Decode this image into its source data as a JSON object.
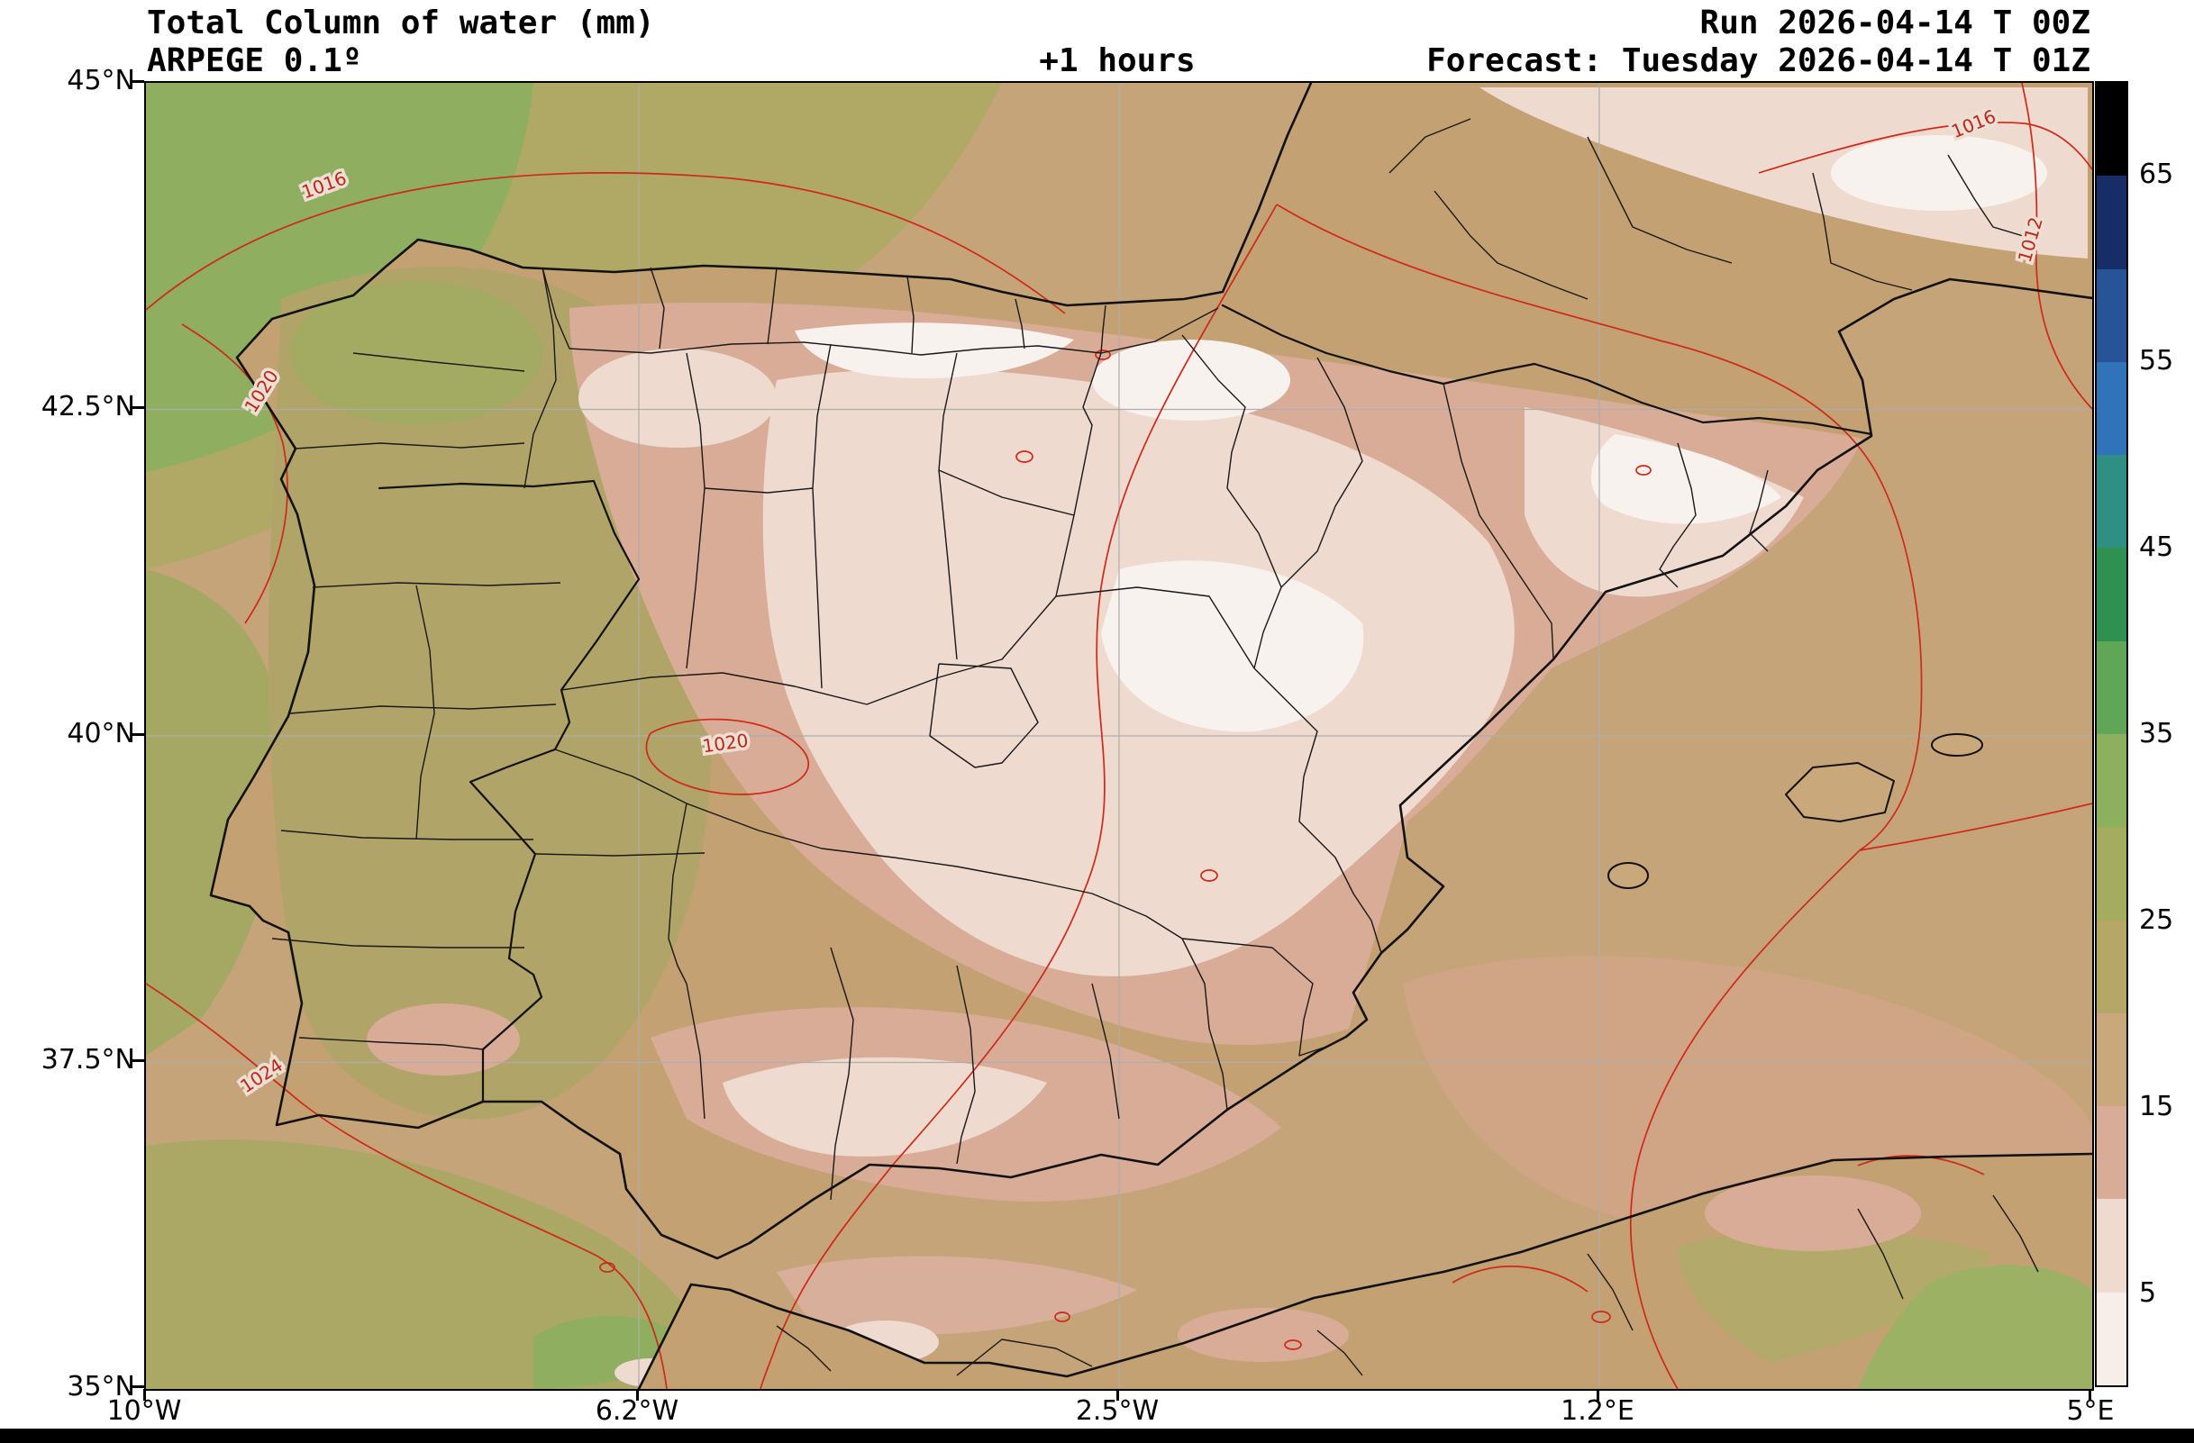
{
  "header": {
    "title": "Total Column of water (mm)",
    "model": "ARPEGE 0.1º",
    "lead_time": "+1 hours",
    "run": "Run 2026-04-14 T 00Z",
    "forecast": "Forecast: Tuesday 2026-04-14 T 01Z"
  },
  "axes": {
    "lat_ticks": [
      "45°N",
      "42.5°N",
      "40°N",
      "37.5°N",
      "35°N"
    ],
    "lon_ticks": [
      "10°W",
      "6.2°W",
      "2.5°W",
      "1.2°E",
      "5°E"
    ]
  },
  "colorbar": {
    "tick_labels": [
      "65",
      "55",
      "45",
      "35",
      "25",
      "15",
      "5"
    ],
    "levels_mm": [
      0,
      5,
      10,
      15,
      20,
      25,
      30,
      35,
      40,
      45,
      50,
      55,
      60,
      65,
      70
    ],
    "colors_top_to_bottom": [
      "#000000",
      "#162d68",
      "#275397",
      "#3173b8",
      "#2e8f82",
      "#2f9150",
      "#5fa757",
      "#8db05e",
      "#a4ad5f",
      "#b5a766",
      "#c9a87c",
      "#d9ac97",
      "#eedacf",
      "#f7eeea"
    ]
  },
  "isobars": {
    "line_color": "#d02818",
    "labels": [
      "1016",
      "1020",
      "1016",
      "1012",
      "1020",
      "1024"
    ]
  }
}
